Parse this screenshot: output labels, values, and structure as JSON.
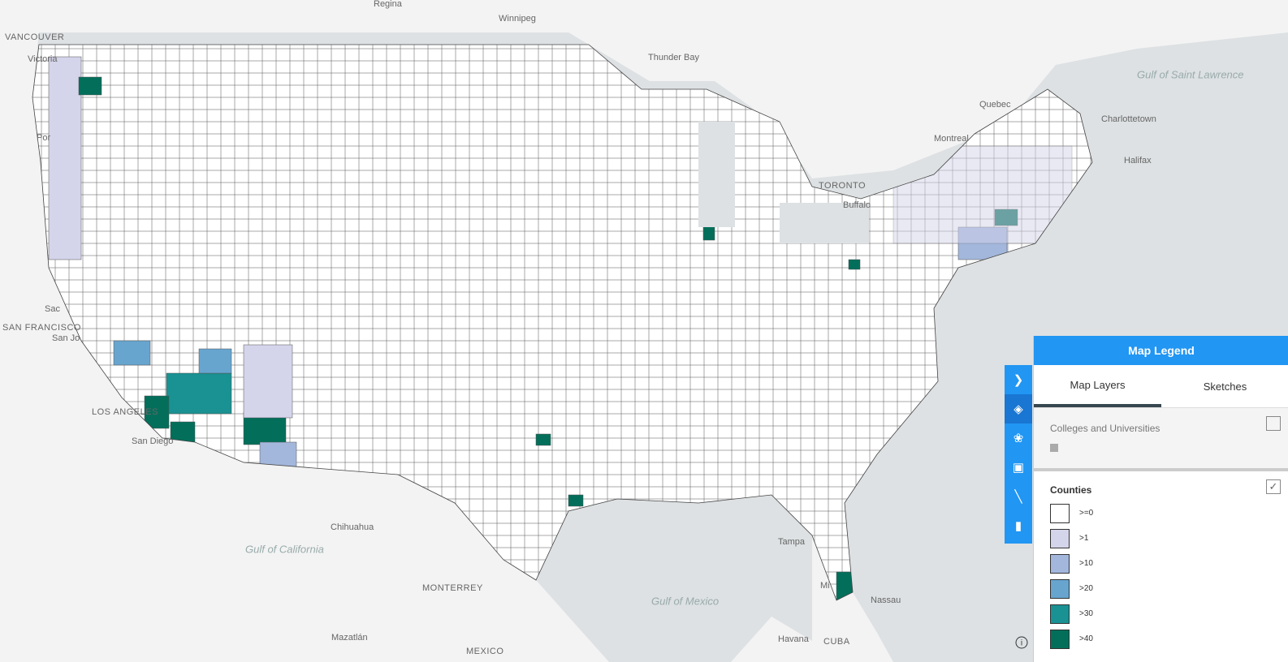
{
  "map": {
    "place_labels": [
      "Regina",
      "Winnipeg",
      "VANCOUVER",
      "Victoria",
      "Thunder Bay",
      "Gulf of Saint Lawrence",
      "Quebec",
      "Charlottetown",
      "Halifax",
      "Montreal",
      "TORONTO",
      "Buffalo",
      "Por",
      "Sac",
      "SAN FRANCISCO",
      "San Jo",
      "LOS ANGELES",
      "San Diego",
      "Chihuahua",
      "Gulf of California",
      "MONTERREY",
      "Gulf of Mexico",
      "Nassau",
      "Tampa",
      "Mi",
      "Havana",
      "CUBA",
      "Mazatlán",
      "MEXICO"
    ]
  },
  "legend": {
    "title": "Map Legend",
    "tabs": [
      "Map Layers",
      "Sketches"
    ],
    "layers": [
      {
        "name": "Colleges and Universities"
      },
      {
        "name": "Counties",
        "classes": [
          {
            "label": ">=0",
            "color": "#ffffff"
          },
          {
            "label": ">1",
            "color": "#d4d4ea"
          },
          {
            "label": ">10",
            "color": "#a3b7dc"
          },
          {
            "label": ">20",
            "color": "#67a5cf"
          },
          {
            "label": ">30",
            "color": "#1a9192"
          },
          {
            "label": ">40",
            "color": "#036f5b"
          }
        ]
      }
    ]
  }
}
